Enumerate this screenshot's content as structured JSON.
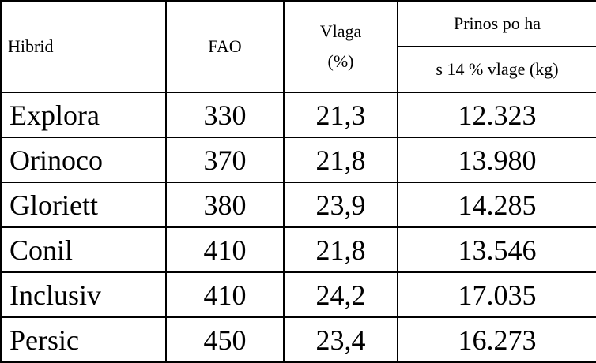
{
  "header": {
    "hibrid": "Hibrid",
    "fao": "FAO",
    "vlaga": [
      "Vlaga",
      "(%)"
    ],
    "prinos": "Prinos po ha",
    "prinos_sub": "s 14 % vlage (kg)"
  },
  "table": {
    "rows": [
      [
        "Explora",
        "330",
        "21,3",
        "12.323"
      ],
      [
        "Orinoco",
        "370",
        "21,8",
        "13.980"
      ],
      [
        "Gloriett",
        "380",
        "23,9",
        "14.285"
      ],
      [
        "Conil",
        "410",
        "21,8",
        "13.546"
      ],
      [
        "Inclusiv",
        "410",
        "24,2",
        "17.035"
      ],
      [
        "Persic",
        "450",
        "23,4",
        "16.273"
      ]
    ]
  }
}
